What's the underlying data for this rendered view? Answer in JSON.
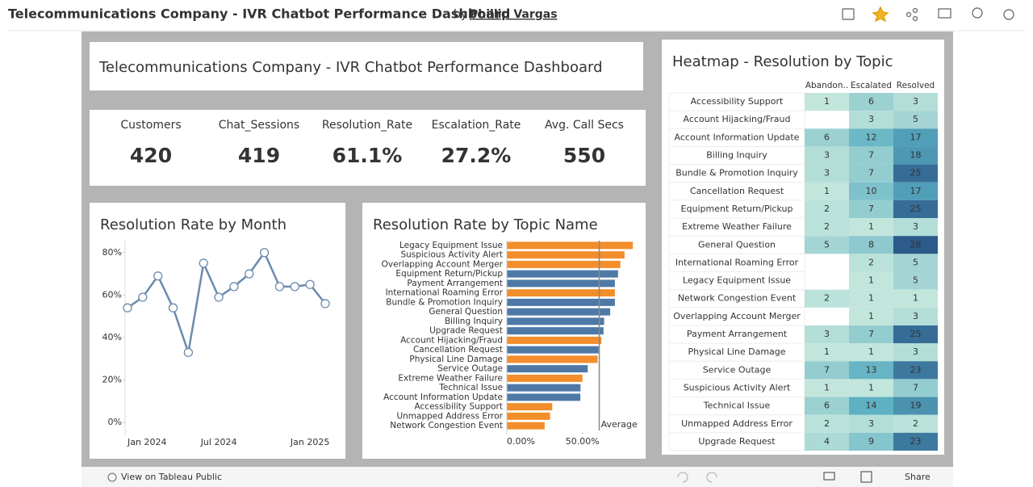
{
  "header": {
    "title": "Telecommunications Company - IVR Chatbot Performance Dashboard",
    "by": "by",
    "author": "Phillip Vargas"
  },
  "dashboard_title": "Telecommunications Company - IVR Chatbot Performance Dashboard",
  "kpis": [
    {
      "label": "Customers",
      "value": "420"
    },
    {
      "label": "Chat_Sessions",
      "value": "419"
    },
    {
      "label": "Resolution_Rate",
      "value": "61.1%"
    },
    {
      "label": "Escalation_Rate",
      "value": "27.2%"
    },
    {
      "label": "Avg. Call Secs",
      "value": "550"
    }
  ],
  "chart_data": [
    {
      "type": "line",
      "title": "Resolution Rate by Month",
      "categories": [
        "Jan 2024",
        null,
        null,
        null,
        null,
        null,
        "Jul 2024",
        null,
        null,
        null,
        null,
        null,
        "Jan 2025",
        null
      ],
      "values": [
        54,
        59,
        69,
        54,
        33,
        75,
        59,
        64,
        70,
        80,
        64,
        64,
        65,
        56
      ],
      "color": "#6b8bad",
      "ylim": [
        -6,
        86
      ],
      "yticks": [
        {
          "value": 0,
          "label": "0%"
        },
        {
          "value": 20,
          "label": "20%"
        },
        {
          "value": 40,
          "label": "40%"
        },
        {
          "value": 60,
          "label": "60%"
        },
        {
          "value": 80,
          "label": "80%"
        }
      ],
      "grid": false
    },
    {
      "type": "hbar",
      "title": "Resolution Rate by Topic Name",
      "categories": [
        "Legacy Equipment Issue",
        "Suspicious Activity Alert",
        "Overlapping Account Merger",
        "Equipment Return/Pickup",
        "Payment Arrangement",
        "International Roaming Error",
        "Bundle & Promotion Inquiry",
        "General Question",
        "Billing Inquiry",
        "Upgrade Request",
        "Account Hijacking/Fraud",
        "Cancellation Request",
        "Physical Line Damage",
        "Service Outage",
        "Extreme Weather Failure",
        "Technical Issue",
        "Account Information Update",
        "Accessibility Support",
        "Unmapped Address Error",
        "Network Congestion Event"
      ],
      "values": [
        83.3,
        77.8,
        75.0,
        73.5,
        71.4,
        71.4,
        71.4,
        68.3,
        64.3,
        63.9,
        62.5,
        60.7,
        60.0,
        53.5,
        50.0,
        48.7,
        48.6,
        30.0,
        28.6,
        25.0
      ],
      "colors": [
        "#f28e2b",
        "#f28e2b",
        "#f28e2b",
        "#4e79a7",
        "#4e79a7",
        "#f28e2b",
        "#4e79a7",
        "#4e79a7",
        "#4e79a7",
        "#4e79a7",
        "#f28e2b",
        "#4e79a7",
        "#f28e2b",
        "#4e79a7",
        "#f28e2b",
        "#4e79a7",
        "#4e79a7",
        "#f28e2b",
        "#f28e2b",
        "#f28e2b"
      ],
      "xlim": [
        0,
        88
      ],
      "xticks": [
        {
          "value": 0,
          "label": "0.00%"
        },
        {
          "value": 50,
          "label": "50.00%"
        }
      ],
      "reference_line": {
        "label": "Average",
        "value": 61.1
      }
    },
    {
      "type": "heatmap",
      "title": "Heatmap - Resolution by Topic",
      "columns": [
        "Abandon..",
        "Escalated",
        "Resolved"
      ],
      "rows": [
        "Accessibility Support",
        "Account Hijacking/Fraud",
        "Account Information Update",
        "Billing Inquiry",
        "Bundle & Promotion Inquiry",
        "Cancellation Request",
        "Equipment Return/Pickup",
        "Extreme Weather Failure",
        "General Question",
        "International Roaming Error",
        "Legacy Equipment Issue",
        "Network Congestion Event",
        "Overlapping Account Merger",
        "Payment Arrangement",
        "Physical Line Damage",
        "Service Outage",
        "Suspicious Activity Alert",
        "Technical Issue",
        "Unmapped Address Error",
        "Upgrade Request"
      ],
      "values": [
        [
          1,
          6,
          3
        ],
        [
          null,
          3,
          5
        ],
        [
          6,
          12,
          17
        ],
        [
          3,
          7,
          18
        ],
        [
          3,
          7,
          25
        ],
        [
          1,
          10,
          17
        ],
        [
          2,
          7,
          25
        ],
        [
          2,
          1,
          3
        ],
        [
          5,
          8,
          28
        ],
        [
          null,
          2,
          5
        ],
        [
          null,
          1,
          5
        ],
        [
          2,
          1,
          1
        ],
        [
          null,
          1,
          3
        ],
        [
          3,
          7,
          25
        ],
        [
          1,
          1,
          3
        ],
        [
          7,
          13,
          23
        ],
        [
          1,
          1,
          7
        ],
        [
          6,
          14,
          19
        ],
        [
          2,
          3,
          2
        ],
        [
          4,
          9,
          23
        ]
      ],
      "color_scale": [
        "#c3e6dc",
        "#5aaec2",
        "#2c5a8a"
      ]
    }
  ],
  "footer": {
    "view": "View on Tableau Public",
    "share": "Share"
  }
}
